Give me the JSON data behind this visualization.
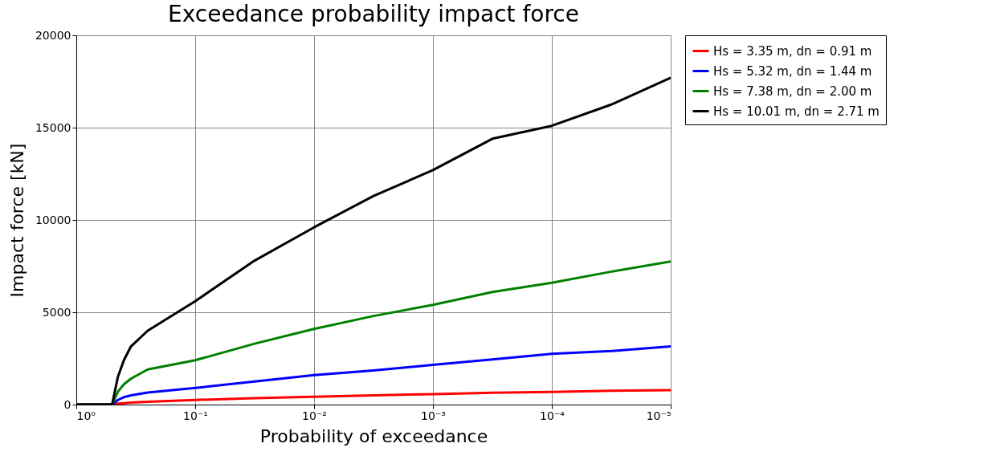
{
  "chart_data": {
    "type": "line",
    "title": "Exceedance probability impact force",
    "xlabel": "Probability of exceedance",
    "ylabel": "Impact force [kN]",
    "x": [
      1,
      0.5,
      0.447,
      0.398,
      0.347,
      0.251,
      0.1,
      0.0316,
      0.01,
      0.00316,
      0.001,
      0.000316,
      0.0001,
      3.16e-05,
      1e-05
    ],
    "series": [
      {
        "name": "Hs = 3.35 m, dn = 0.91 m",
        "color": "#ff0000",
        "values": [
          0,
          0,
          50,
          80,
          110,
          150,
          250,
          350,
          420,
          500,
          570,
          640,
          680,
          750,
          780
        ]
      },
      {
        "name": "Hs = 5.32 m, dn = 1.44 m",
        "color": "#0000ff",
        "values": [
          0,
          0,
          250,
          400,
          500,
          650,
          900,
          1250,
          1600,
          1850,
          2150,
          2450,
          2750,
          2900,
          3150
        ]
      },
      {
        "name": "Hs = 7.38 m, dn = 2.00 m",
        "color": "#008000",
        "values": [
          0,
          0,
          700,
          1100,
          1400,
          1900,
          2400,
          3300,
          4100,
          4800,
          5400,
          6100,
          6600,
          7200,
          7750
        ]
      },
      {
        "name": "Hs = 10.01 m, dn = 2.71 m",
        "color": "#000000",
        "values": [
          0,
          0,
          1500,
          2400,
          3150,
          4000,
          5600,
          7800,
          9600,
          11300,
          12700,
          14400,
          15100,
          16250,
          17700
        ]
      }
    ],
    "log": "x",
    "xlim": [
      1,
      1e-05
    ],
    "xticks": [
      {
        "value": 1,
        "label": "10⁰"
      },
      {
        "value": 0.1,
        "label": "10⁻¹"
      },
      {
        "value": 0.01,
        "label": "10⁻²"
      },
      {
        "value": 0.001,
        "label": "10⁻³"
      },
      {
        "value": 0.0001,
        "label": "10⁻⁴"
      },
      {
        "value": 1e-05,
        "label": "10⁻⁵"
      }
    ],
    "ylim": [
      0,
      20000
    ],
    "yticks": [
      0,
      5000,
      10000,
      15000,
      20000
    ],
    "grid": true,
    "legend": "right",
    "marker": "none",
    "line_style": "solid"
  }
}
